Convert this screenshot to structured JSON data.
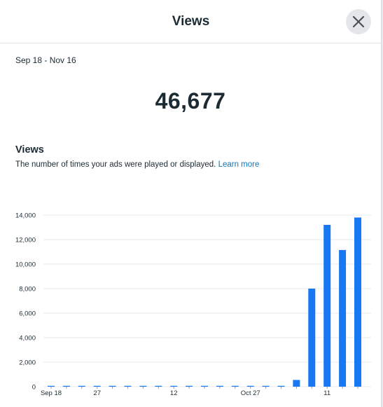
{
  "dialog": {
    "title": "Views",
    "close_icon": "close-icon",
    "date_range": "Sep 18 - Nov 16",
    "total": "46,677",
    "metric_title": "Views",
    "metric_description": "The number of times your ads were played or displayed.",
    "learn_more": "Learn more"
  },
  "colors": {
    "bar": "#1877f2",
    "grid": "#e6e8eb",
    "link": "#0a78be"
  },
  "chart_data": {
    "type": "bar",
    "xlabel": "",
    "ylabel": "",
    "ylim": [
      0,
      14000
    ],
    "y_ticks": [
      "0",
      "2,000",
      "4,000",
      "6,000",
      "8,000",
      "10,000",
      "12,000",
      "14,000"
    ],
    "x_tick_labels": [
      {
        "index": 0,
        "label": "Sep 18"
      },
      {
        "index": 3,
        "label": "27"
      },
      {
        "index": 8,
        "label": "12"
      },
      {
        "index": 13,
        "label": "Oct 27"
      },
      {
        "index": 18,
        "label": "11"
      }
    ],
    "grid": true,
    "values": [
      20,
      20,
      20,
      20,
      20,
      20,
      20,
      20,
      20,
      20,
      20,
      20,
      20,
      20,
      20,
      20,
      550,
      8000,
      13200,
      11150,
      13800
    ]
  }
}
